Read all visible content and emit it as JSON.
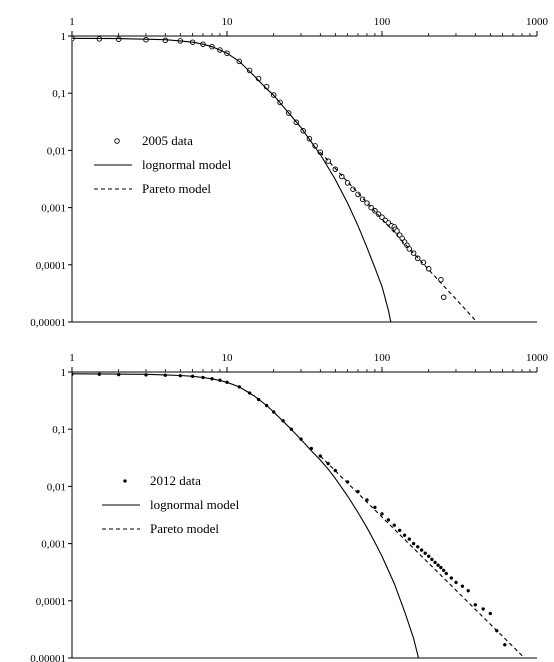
{
  "chart_data": [
    {
      "type": "scatter",
      "x_scale": "log",
      "y_scale": "log",
      "xlim": [
        1,
        1000
      ],
      "ylim": [
        1e-05,
        1
      ],
      "x_ticks": [
        "1",
        "10",
        "100",
        "1000"
      ],
      "y_ticks": [
        "1",
        "0,1",
        "0,01",
        "0,001",
        "0,0001",
        "0,00001"
      ],
      "legend_position": "middle-left",
      "series": [
        {
          "name": "2005 data",
          "kind": "scatter",
          "marker": "open-circle",
          "x": [
            1.0,
            1.5,
            2.0,
            3.0,
            4.0,
            5.0,
            6.0,
            7.0,
            8.0,
            9.0,
            10.0,
            12.0,
            14.0,
            16.0,
            18.0,
            20.0,
            22.0,
            25.0,
            28.0,
            31.0,
            34.0,
            37.0,
            40.0,
            45.0,
            50.0,
            55.0,
            60.0,
            65.0,
            70.0,
            75.0,
            80.0,
            85.0,
            90.0,
            95.0,
            100.0,
            105.0,
            110.0,
            115.0,
            120.0,
            122.0,
            125.0,
            130.0,
            135.0,
            140.0,
            145.0,
            150.0,
            160.0,
            170.0,
            185.0,
            200.0,
            240.0,
            250.0
          ],
          "y": [
            0.9,
            0.89,
            0.88,
            0.86,
            0.84,
            0.82,
            0.78,
            0.72,
            0.65,
            0.57,
            0.5,
            0.36,
            0.25,
            0.18,
            0.13,
            0.093,
            0.069,
            0.045,
            0.031,
            0.022,
            0.016,
            0.012,
            0.0093,
            0.0065,
            0.0047,
            0.0035,
            0.0027,
            0.0021,
            0.0017,
            0.0014,
            0.0012,
            0.001,
            0.00088,
            0.00077,
            0.00068,
            0.0006,
            0.00054,
            0.00048,
            0.00046,
            0.00042,
            0.00039,
            0.00033,
            0.00029,
            0.00025,
            0.00022,
            0.00019,
            0.00016,
            0.00013,
            0.00011,
            8.5e-05,
            5.5e-05,
            2.7e-05
          ]
        },
        {
          "name": "lognormal model",
          "kind": "line",
          "dash": "solid",
          "x": [
            1,
            2,
            3,
            4,
            5,
            6,
            7,
            8,
            9,
            10,
            12,
            15,
            18,
            20,
            25,
            30,
            35,
            40,
            45,
            50,
            60,
            70,
            80,
            90,
            100,
            110,
            114
          ],
          "y": [
            0.91,
            0.9,
            0.88,
            0.86,
            0.82,
            0.78,
            0.72,
            0.65,
            0.57,
            0.5,
            0.36,
            0.2,
            0.12,
            0.092,
            0.045,
            0.025,
            0.014,
            0.0085,
            0.005,
            0.0031,
            0.0012,
            0.00048,
            0.0002,
            8.85e-05,
            4.2e-05,
            1.6e-05,
            1e-05
          ]
        },
        {
          "name": "Pareto model",
          "kind": "line",
          "dash": "dashed",
          "x": [
            40,
            410
          ],
          "y": [
            0.0093,
            1e-05
          ]
        }
      ]
    },
    {
      "type": "scatter",
      "x_scale": "log",
      "y_scale": "log",
      "xlim": [
        1,
        1000
      ],
      "ylim": [
        1e-05,
        1
      ],
      "x_ticks": [
        "1",
        "10",
        "100",
        "1000"
      ],
      "y_ticks": [
        "1",
        "0,1",
        "0,01",
        "0,001",
        "0,0001",
        "0,00001"
      ],
      "legend_position": "middle-left",
      "series": [
        {
          "name": "2012 data",
          "kind": "scatter",
          "marker": "small-dot",
          "x": [
            1.0,
            1.5,
            2.0,
            3.0,
            4.0,
            5.0,
            6.0,
            7.0,
            8.0,
            9.0,
            10.0,
            12.0,
            14.0,
            16.0,
            18.0,
            20.0,
            23.0,
            26.0,
            30.0,
            35.0,
            40.0,
            45.0,
            50.0,
            60.0,
            70.0,
            80.0,
            90.0,
            100.0,
            110.0,
            120.0,
            130.0,
            140.0,
            150.0,
            160.0,
            170.0,
            180.0,
            190.0,
            200.0,
            210.0,
            220.0,
            230.0,
            240.0,
            250.0,
            260.0,
            280.0,
            300.0,
            330.0,
            360.0,
            400.0,
            450.0,
            500.0,
            550.0,
            620.0
          ],
          "y": [
            0.92,
            0.91,
            0.9,
            0.89,
            0.88,
            0.86,
            0.84,
            0.8,
            0.76,
            0.72,
            0.66,
            0.55,
            0.43,
            0.33,
            0.26,
            0.2,
            0.14,
            0.1,
            0.067,
            0.046,
            0.034,
            0.025,
            0.019,
            0.012,
            0.0081,
            0.0058,
            0.0043,
            0.0033,
            0.0026,
            0.0021,
            0.0017,
            0.0014,
            0.0012,
            0.001,
            0.00088,
            0.00077,
            0.00068,
            0.0006,
            0.00053,
            0.00047,
            0.00042,
            0.00038,
            0.00034,
            0.0003,
            0.00025,
            0.00021,
            0.00018,
            0.00015,
            8.5e-05,
            7.2e-05,
            6e-05,
            3e-05,
            1.7e-05
          ]
        },
        {
          "name": "lognormal model",
          "kind": "line",
          "dash": "solid",
          "x": [
            1,
            2,
            3,
            4,
            5,
            6,
            7,
            8,
            9,
            10,
            12,
            15,
            18,
            20,
            25,
            30,
            35,
            40,
            45,
            50,
            60,
            70,
            80,
            90,
            100,
            120,
            140,
            160,
            172
          ],
          "y": [
            0.93,
            0.92,
            0.91,
            0.89,
            0.87,
            0.84,
            0.8,
            0.76,
            0.71,
            0.66,
            0.55,
            0.38,
            0.26,
            0.2,
            0.11,
            0.066,
            0.042,
            0.029,
            0.02,
            0.0138,
            0.0068,
            0.0035,
            0.0019,
            0.00105,
            0.0006,
            0.0002,
            6.5e-05,
            2.2e-05,
            1e-05
          ]
        },
        {
          "name": "Pareto model",
          "kind": "line",
          "dash": "dashed",
          "x": [
            40,
            830
          ],
          "y": [
            0.034,
            1e-05
          ]
        }
      ]
    }
  ]
}
